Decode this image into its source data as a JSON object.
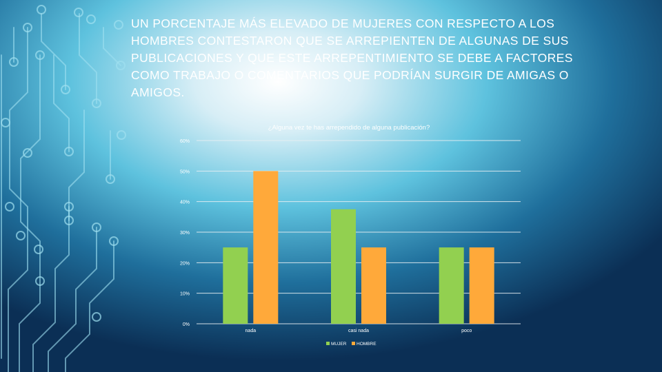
{
  "slide": {
    "heading": "UN PORCENTAJE MÁS ELEVADO DE MUJERES CON RESPECTO A LOS HOMBRES CONTESTARON QUE SE ARREPIENTEN DE ALGUNAS DE SUS PUBLICACIONES Y QUE ESTE ARREPENTIMIENTO SE DEBE A FACTORES COMO TRABAJO O COMENTARIOS QUE PODRÍAN SURGIR DE AMIGAS O AMIGOS."
  },
  "colors": {
    "mujer": "#92d050",
    "hombre": "#ffa93a",
    "gridline": "#e8eef2",
    "circuit": "#9fe0f0"
  },
  "chart_data": {
    "type": "bar",
    "title": "¿Alguna vez te has arrependido de alguna publicación?",
    "categories": [
      "nada",
      "casi nada",
      "poco"
    ],
    "series": [
      {
        "name": "MUJER",
        "values": [
          25,
          37.5,
          25
        ]
      },
      {
        "name": "HOMBRE",
        "values": [
          50,
          25,
          25
        ]
      }
    ],
    "ylim": [
      0,
      60
    ],
    "yticks": [
      "0%",
      "10%",
      "20%",
      "30%",
      "40%",
      "50%",
      "60%"
    ],
    "ytick_values": [
      0,
      10,
      20,
      30,
      40,
      50,
      60
    ],
    "grid": true,
    "legend_position": "bottom"
  }
}
